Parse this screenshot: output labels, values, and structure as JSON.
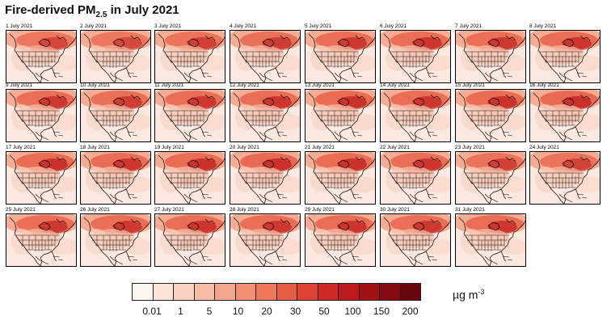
{
  "title": {
    "prefix": "Fire-derived PM",
    "subscript": "2.5",
    "suffix": " in July 2021"
  },
  "panels": [
    {
      "label": "1 July 2021",
      "intensity": 0.35
    },
    {
      "label": "2 July 2021",
      "intensity": 0.3
    },
    {
      "label": "3 July 2021",
      "intensity": 0.45
    },
    {
      "label": "4 July 2021",
      "intensity": 0.5
    },
    {
      "label": "5 July 2021",
      "intensity": 0.55
    },
    {
      "label": "6 July 2021",
      "intensity": 0.6
    },
    {
      "label": "7 July 2021",
      "intensity": 0.55
    },
    {
      "label": "8 July 2021",
      "intensity": 0.6
    },
    {
      "label": "9 July 2021",
      "intensity": 0.55
    },
    {
      "label": "10 July 2021",
      "intensity": 0.5
    },
    {
      "label": "11 July 2021",
      "intensity": 0.55
    },
    {
      "label": "12 July 2021",
      "intensity": 0.6
    },
    {
      "label": "13 July 2021",
      "intensity": 0.65
    },
    {
      "label": "14 July 2021",
      "intensity": 0.6
    },
    {
      "label": "15 July 2021",
      "intensity": 0.65
    },
    {
      "label": "16 July 2021",
      "intensity": 0.7
    },
    {
      "label": "17 July 2021",
      "intensity": 0.65
    },
    {
      "label": "18 July 2021",
      "intensity": 0.6
    },
    {
      "label": "19 July 2021",
      "intensity": 0.65
    },
    {
      "label": "20 July 2021",
      "intensity": 0.7
    },
    {
      "label": "21 July 2021",
      "intensity": 0.65
    },
    {
      "label": "22 July 2021",
      "intensity": 0.6
    },
    {
      "label": "23 July 2021",
      "intensity": 0.45
    },
    {
      "label": "24 July 2021",
      "intensity": 0.4
    },
    {
      "label": "25 July 2021",
      "intensity": 0.55
    },
    {
      "label": "26 July 2021",
      "intensity": 0.55
    },
    {
      "label": "27 July 2021",
      "intensity": 0.6
    },
    {
      "label": "28 July 2021",
      "intensity": 0.55
    },
    {
      "label": "29 July 2021",
      "intensity": 0.6
    },
    {
      "label": "30 July 2021",
      "intensity": 0.55
    },
    {
      "label": "31 July 2021",
      "intensity": 0.6
    }
  ],
  "legend": {
    "colors": [
      "#fdf3ef",
      "#fbe3d8",
      "#f9d1c1",
      "#f6bca7",
      "#f3a68c",
      "#f08f72",
      "#ec7759",
      "#e65d44",
      "#dd4332",
      "#cf2b25",
      "#bc1a1c",
      "#a31015",
      "#860a12",
      "#69060e"
    ],
    "tick_labels": [
      "0.01",
      "1",
      "5",
      "10",
      "20",
      "30",
      "50",
      "100",
      "150",
      "200"
    ],
    "tick_positions": [
      1,
      3,
      5,
      7,
      9,
      11,
      13,
      15,
      17,
      19
    ],
    "units_base": "µg m",
    "units_exponent": "-3"
  }
}
